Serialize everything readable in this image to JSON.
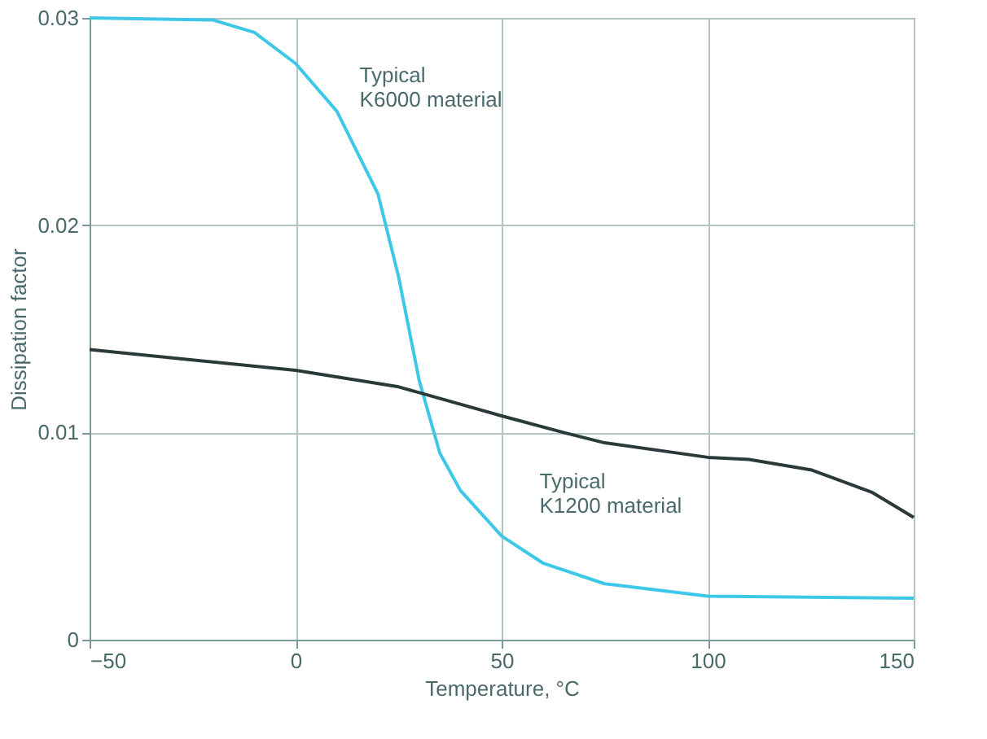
{
  "chart_data": {
    "type": "line",
    "xlabel": "Temperature, °C",
    "ylabel": "Dissipation factor",
    "xlim": [
      -50,
      150
    ],
    "xticks": [
      -50,
      0,
      50,
      100,
      150
    ],
    "ylim": [
      0,
      0.03
    ],
    "yticks": [
      0,
      0.01,
      0.02,
      0.03
    ],
    "grid": true,
    "marker": "none",
    "line_style": "solid",
    "series": [
      {
        "name": "Typical\nK6000 material",
        "color": "#3ec8e8",
        "x": [
          -50,
          -20,
          -10,
          0,
          10,
          20,
          25,
          30,
          35,
          40,
          50,
          60,
          75,
          100,
          150
        ],
        "values": [
          0.03,
          0.0299,
          0.0293,
          0.0278,
          0.0255,
          0.0215,
          0.0175,
          0.0125,
          0.009,
          0.0072,
          0.005,
          0.0037,
          0.0027,
          0.0021,
          0.002
        ]
      },
      {
        "name": "Typical\nK1200 material",
        "color": "#2a3a3a",
        "x": [
          -50,
          0,
          25,
          50,
          65,
          75,
          100,
          110,
          125,
          140,
          150
        ],
        "values": [
          0.014,
          0.013,
          0.0122,
          0.0108,
          0.01,
          0.0095,
          0.0088,
          0.0087,
          0.0082,
          0.0071,
          0.0059
        ]
      }
    ]
  }
}
